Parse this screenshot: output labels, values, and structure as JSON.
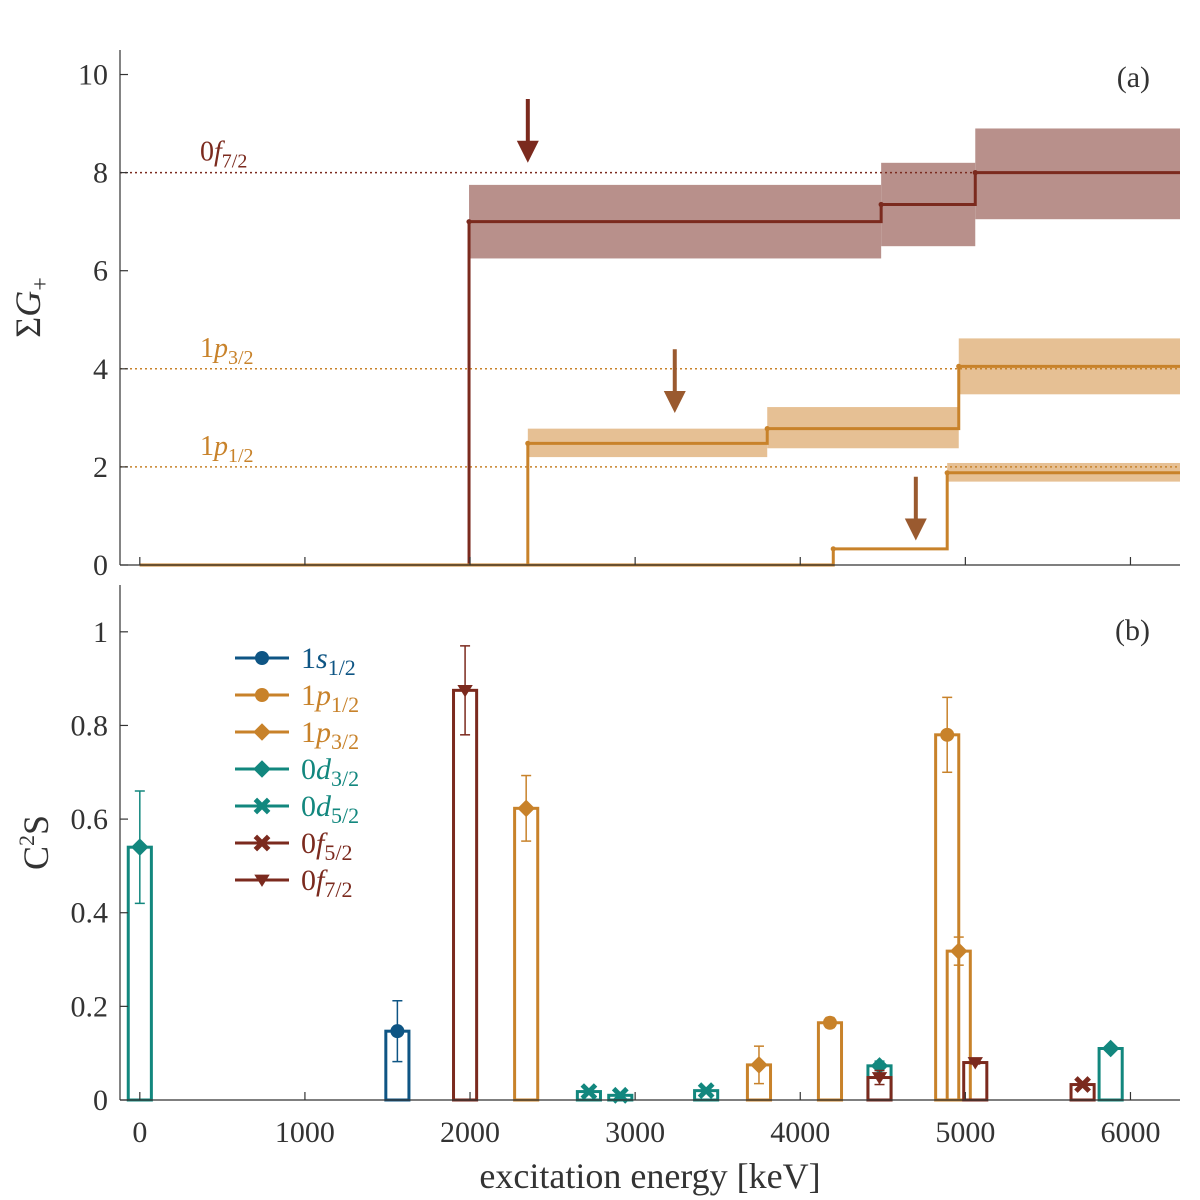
{
  "colors": {
    "f72": "#7b2a1e",
    "p": "#c8822a",
    "arrow_p": "#9a5a2f",
    "s12": "#0e5584",
    "d": "#12877e",
    "f52": "#7b2a1e",
    "band_f72": "#b8908b",
    "band_p": "#e6c094",
    "axis": "#333333"
  },
  "chart_data": [
    {
      "id": "a",
      "type": "line",
      "panel_label": "(a)",
      "ylabel_sym": "Σ",
      "ylabel_var": "G",
      "ylabel_sub": "+",
      "ylim": [
        0,
        10.5
      ],
      "xlim": [
        -120,
        6300
      ],
      "yticks": [
        0,
        2,
        4,
        6,
        8,
        10
      ],
      "reference_lines": [
        {
          "y": 8,
          "label_main": "0",
          "label_ital": "f",
          "label_sub": "7/2",
          "color_key": "f72"
        },
        {
          "y": 4,
          "label_main": "1",
          "label_ital": "p",
          "label_sub": "3/2",
          "color_key": "p"
        },
        {
          "y": 2,
          "label_main": "1",
          "label_ital": "p",
          "label_sub": "1/2",
          "color_key": "p"
        }
      ],
      "series": [
        {
          "name": "0f7/2",
          "color_key": "f72",
          "band_key": "band_f72",
          "steps": [
            [
              0,
              0
            ],
            [
              1994,
              7.0
            ],
            [
              4490,
              7.35
            ],
            [
              5060,
              8.0
            ]
          ],
          "bands": [
            {
              "x0": 1994,
              "x1": 4490,
              "lo": 6.25,
              "hi": 7.75
            },
            {
              "x0": 4490,
              "x1": 5060,
              "lo": 6.5,
              "hi": 8.2
            },
            {
              "x0": 5060,
              "x1": 6300,
              "lo": 7.05,
              "hi": 8.9
            }
          ]
        },
        {
          "name": "1p3/2",
          "color_key": "p",
          "band_key": "band_p",
          "steps": [
            [
              0,
              0
            ],
            [
              2350,
              2.48
            ],
            [
              3800,
              2.78
            ],
            [
              4960,
              4.05
            ]
          ],
          "bands": [
            {
              "x0": 2350,
              "x1": 3800,
              "lo": 2.2,
              "hi": 2.78
            },
            {
              "x0": 3800,
              "x1": 4960,
              "lo": 2.38,
              "hi": 3.22
            },
            {
              "x0": 4960,
              "x1": 6300,
              "lo": 3.48,
              "hi": 4.62
            }
          ]
        },
        {
          "name": "1p1/2",
          "color_key": "p",
          "band_key": "band_p",
          "steps": [
            [
              0,
              0
            ],
            [
              4200,
              0.33
            ],
            [
              4890,
              1.88
            ]
          ],
          "bands": [
            {
              "x0": 4890,
              "x1": 6300,
              "lo": 1.7,
              "hi": 2.08
            }
          ]
        }
      ],
      "arrows": [
        {
          "x": 2350,
          "y_top": 9.5,
          "y_tip": 8.2,
          "color_key": "f72"
        },
        {
          "x": 3240,
          "y_top": 4.4,
          "y_tip": 3.1,
          "color_key": "arrow_p"
        },
        {
          "x": 4700,
          "y_top": 1.8,
          "y_tip": 0.5,
          "color_key": "arrow_p"
        }
      ]
    },
    {
      "id": "b",
      "type": "bar",
      "panel_label": "(b)",
      "ylabel_main": "C",
      "ylabel_sup": "2",
      "ylabel_end": "S",
      "ylim": [
        0,
        1.1
      ],
      "xlim": [
        -120,
        6300
      ],
      "yticks": [
        0,
        0.2,
        0.4,
        0.6,
        0.8,
        1
      ],
      "ytick_labels": [
        "0",
        "0.2",
        "0.4",
        "0.6",
        "0.8",
        "1"
      ],
      "xticks": [
        0,
        1000,
        2000,
        3000,
        4000,
        5000,
        6000
      ],
      "xlabel": "excitation energy [keV]",
      "bar_width": 140,
      "legend": [
        {
          "num": "1",
          "ital": "s",
          "sub": "1/2",
          "color_key": "s12",
          "marker": "circle"
        },
        {
          "num": "1",
          "ital": "p",
          "sub": "1/2",
          "color_key": "p",
          "marker": "circle"
        },
        {
          "num": "1",
          "ital": "p",
          "sub": "3/2",
          "color_key": "p",
          "marker": "diamond"
        },
        {
          "num": "0",
          "ital": "d",
          "sub": "3/2",
          "color_key": "d",
          "marker": "diamond"
        },
        {
          "num": "0",
          "ital": "d",
          "sub": "5/2",
          "color_key": "d",
          "marker": "x"
        },
        {
          "num": "0",
          "ital": "f",
          "sub": "5/2",
          "color_key": "f52",
          "marker": "x"
        },
        {
          "num": "0",
          "ital": "f",
          "sub": "7/2",
          "color_key": "f72",
          "marker": "triangle"
        }
      ],
      "bars": [
        {
          "x": 0,
          "value": 0.54,
          "err": 0.12,
          "series": "0d3/2",
          "color_key": "d",
          "marker": "diamond"
        },
        {
          "x": 1560,
          "value": 0.147,
          "err": 0.065,
          "series": "1s1/2",
          "color_key": "s12",
          "marker": "circle"
        },
        {
          "x": 1970,
          "value": 0.875,
          "err": 0.095,
          "series": "0f7/2",
          "color_key": "f72",
          "marker": "triangle"
        },
        {
          "x": 2340,
          "value": 0.623,
          "err": 0.07,
          "series": "1p3/2",
          "color_key": "p",
          "marker": "diamond"
        },
        {
          "x": 2720,
          "value": 0.018,
          "err": 0,
          "series": "0d5/2",
          "color_key": "d",
          "marker": "x"
        },
        {
          "x": 2910,
          "value": 0.01,
          "err": 0,
          "series": "0d5/2",
          "color_key": "d",
          "marker": "x"
        },
        {
          "x": 3430,
          "value": 0.02,
          "err": 0,
          "series": "0d5/2",
          "color_key": "d",
          "marker": "x"
        },
        {
          "x": 3750,
          "value": 0.075,
          "err": 0.04,
          "series": "1p3/2",
          "color_key": "p",
          "marker": "diamond"
        },
        {
          "x": 4180,
          "value": 0.165,
          "err": 0.01,
          "series": "1p1/2",
          "color_key": "p",
          "marker": "circle"
        },
        {
          "x": 4480,
          "value": 0.073,
          "err": 0.01,
          "series": "0d3/2",
          "color_key": "d",
          "marker": "diamond"
        },
        {
          "x": 4480,
          "value": 0.048,
          "err": 0.015,
          "series": "0f7/2",
          "color_key": "f72",
          "marker": "triangle"
        },
        {
          "x": 4890,
          "value": 0.78,
          "err": 0.08,
          "series": "1p1/2",
          "color_key": "p",
          "marker": "circle"
        },
        {
          "x": 4960,
          "value": 0.318,
          "err": 0.03,
          "series": "1p3/2",
          "color_key": "p",
          "marker": "diamond"
        },
        {
          "x": 5060,
          "value": 0.08,
          "err": 0.003,
          "series": "0f7/2",
          "color_key": "f72",
          "marker": "triangle"
        },
        {
          "x": 5710,
          "value": 0.033,
          "err": 0,
          "series": "0f5/2",
          "color_key": "f52",
          "marker": "x"
        },
        {
          "x": 5880,
          "value": 0.11,
          "err": 0,
          "series": "0d3/2",
          "color_key": "d",
          "marker": "diamond"
        }
      ]
    }
  ]
}
